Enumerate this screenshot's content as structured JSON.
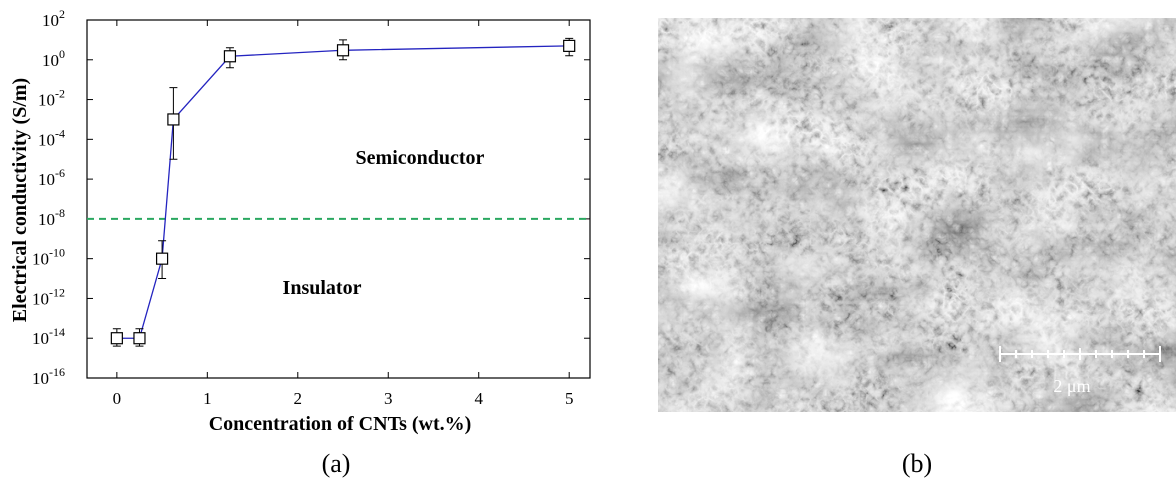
{
  "chart_data": {
    "type": "line",
    "title": "(a)",
    "x_label": "Concentration of CNTs (wt.%)",
    "y_label": "Electrical conductivity (S/m)",
    "x": [
      0,
      0.25,
      0.5,
      0.625,
      1.25,
      2.5,
      5
    ],
    "values": [
      1e-14,
      1e-14,
      1e-10,
      0.001,
      1.5,
      3,
      5
    ],
    "lower": [
      4e-15,
      4e-15,
      1e-11,
      1e-05,
      0.4,
      1,
      1.6
    ],
    "upper": [
      3e-14,
      3e-14,
      8e-10,
      0.04,
      4,
      10,
      12
    ],
    "color": "#2424c0",
    "log_y": true,
    "xlim": [
      -0.33,
      5.23
    ],
    "xticks": [
      0,
      1,
      2,
      3,
      4,
      5
    ],
    "ylim": [
      1e-16,
      100
    ],
    "yticks": [
      {
        "value": 100,
        "label": "10",
        "exponent": "2"
      },
      {
        "value": 1,
        "label": "10",
        "exponent": "0"
      },
      {
        "value": 0.01,
        "label": "10",
        "exponent": "-2"
      },
      {
        "value": 0.0001,
        "label": "10",
        "exponent": "-4"
      },
      {
        "value": 1e-06,
        "label": "10",
        "exponent": "-6"
      },
      {
        "value": 1e-08,
        "label": "10",
        "exponent": "-8"
      },
      {
        "value": 1e-10,
        "label": "10",
        "exponent": "-10"
      },
      {
        "value": 1e-12,
        "label": "10",
        "exponent": "-12"
      },
      {
        "value": 1e-14,
        "label": "10",
        "exponent": "-14"
      },
      {
        "value": 1e-16,
        "label": "10",
        "exponent": "-16"
      }
    ],
    "threshold": {
      "value": 1e-08,
      "color": "#2aa860"
    },
    "annotations": [
      "Semiconductor",
      "Insulator"
    ]
  },
  "image": {
    "caption": "(b)",
    "scale_bar": "2 μm"
  }
}
